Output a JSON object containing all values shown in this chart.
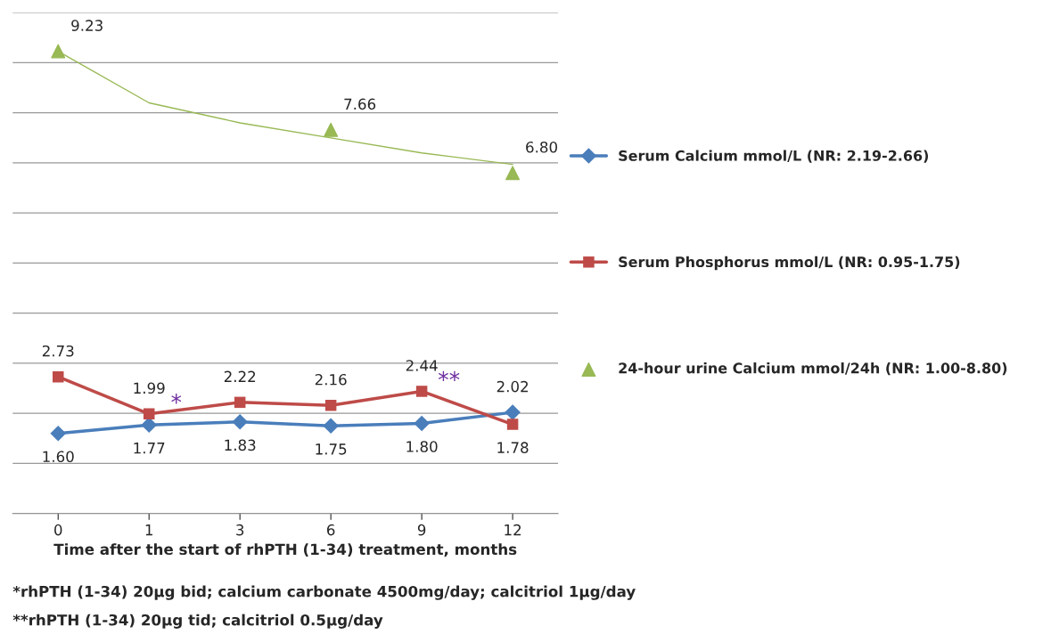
{
  "chart_data": {
    "type": "line",
    "categories": [
      "0",
      "1",
      "3",
      "6",
      "9",
      "12"
    ],
    "xlabel": "Time after the start of rhPTH (1-34) treatment, months",
    "series": [
      {
        "name": "Serum Calcium mmol/L (NR: 2.19-2.66)",
        "color": "#4a7ebb",
        "marker": "diamond",
        "values": [
          1.6,
          1.77,
          1.83,
          1.75,
          1.8,
          2.02
        ],
        "value_labels": [
          "1.60",
          "1.77",
          "1.83",
          "1.75",
          "1.80",
          "2.02"
        ]
      },
      {
        "name": "Serum Phosphorus mmol/L (NR: 0.95-1.75)",
        "color": "#be4b48",
        "marker": "square",
        "values": [
          2.73,
          1.99,
          2.22,
          2.16,
          2.44,
          1.78
        ],
        "value_labels": [
          "2.73",
          "1.99",
          "2.22",
          "2.16",
          "2.44",
          "1.78"
        ]
      },
      {
        "name": "24-hour urine Calcium mmol/24h (NR: 1.00-8.80)",
        "type": "scatter",
        "color": "#98b954",
        "marker": "triangle",
        "values": [
          9.23,
          null,
          null,
          7.66,
          null,
          6.8
        ],
        "value_labels": [
          "9.23",
          null,
          null,
          "7.66",
          null,
          "6.80"
        ]
      },
      {
        "type": "line",
        "color": "#98b954",
        "marker": "none",
        "values": [
          9.23,
          8.2,
          7.8,
          7.5,
          7.2,
          6.97
        ]
      }
    ],
    "ylim": [
      0,
      10
    ],
    "yticks": [
      {
        "value": 0,
        "label": null
      },
      {
        "value": 1,
        "label": null
      },
      {
        "value": 2,
        "label": null
      },
      {
        "value": 3,
        "label": null
      },
      {
        "value": 4,
        "label": null
      },
      {
        "value": 5,
        "label": null
      },
      {
        "value": 6,
        "label": null
      },
      {
        "value": 7,
        "label": null
      },
      {
        "value": 8,
        "label": null
      },
      {
        "value": 9,
        "label": null
      },
      {
        "value": 10,
        "label": null
      }
    ],
    "tick_labels": "x",
    "grid": "y",
    "legend": "right",
    "annotations": [
      {
        "text": "*",
        "x": "1",
        "y": 1.99
      },
      {
        "text": "**",
        "x": "9",
        "y": 2.44
      },
      "*rhPTH (1-34) 20μg bid; calcium carbonate 4500mg/day; calcitriol 1μg/day",
      "**rhPTH (1-34) 20μg tid; calcitriol 0.5μg/day"
    ]
  }
}
